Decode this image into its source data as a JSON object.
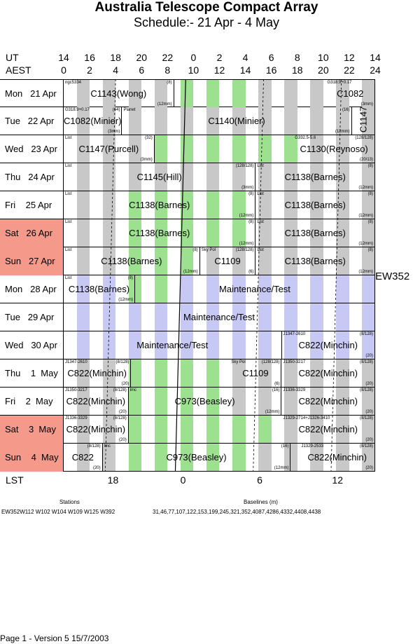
{
  "title": "Australia Telescope Compact Array",
  "subtitle": "Schedule:- 21 Apr - 4  May",
  "axes": {
    "ut_label": "UT",
    "aest_label": "AEST",
    "ut_ticks": [
      "14",
      "16",
      "18",
      "20",
      "22",
      "0",
      "2",
      "4",
      "6",
      "8",
      "10",
      "12",
      "14"
    ],
    "aest_ticks": [
      "0",
      "2",
      "4",
      "6",
      "8",
      "10",
      "12",
      "14",
      "16",
      "18",
      "20",
      "22",
      "24"
    ],
    "lst_label": "LST",
    "lst_ticks": [
      "18",
      "0",
      "6",
      "12"
    ]
  },
  "config_label": "EW352",
  "colors": {
    "weekend": "#f59a8a",
    "grey": "#c8c8c8",
    "green": "#9de08f",
    "lavender": "#c8c8f4"
  },
  "rows": [
    {
      "day": "Mon   21 Apr",
      "weekend": false,
      "blocks": [
        {
          "name": "C1143(Wong)",
          "note": "ngc5334",
          "ratio": "(8)",
          "band": "(12mm)"
        },
        {
          "name": "C1082",
          "note": "G318.9+0.17",
          "ratio": "",
          "band": "(3mm)"
        }
      ]
    },
    {
      "day": "Tue   22 Apr",
      "weekend": false,
      "blocks": [
        {
          "name": "C1082(Minier)",
          "note": "G318.9+0.17",
          "ratio": "(64)",
          "band": "(3mm)"
        },
        {
          "name": "C1140(Minier)",
          "note": "Planet",
          "ratio": "(16)",
          "band": "(12mm)"
        },
        {
          "name": "C1147",
          "note": "",
          "ratio": "",
          "band": ""
        }
      ]
    },
    {
      "day": "Wed   23 Apr",
      "weekend": false,
      "blocks": [
        {
          "name": "C1147(Purcell)",
          "note": "List",
          "ratio": "(32)",
          "band": "(3mm)"
        },
        {
          "name": "C1130(Reynoso)",
          "note": "G332.5-5.6",
          "ratio": "(128/128)",
          "band": "(20/13)"
        }
      ]
    },
    {
      "day": "Thu   24 Apr",
      "weekend": false,
      "blocks": [
        {
          "name": "C1145(Hill)",
          "note": "List",
          "ratio": "(128/128)",
          "band": "(3mm)"
        },
        {
          "name": "C1138(Barnes)",
          "note": "List",
          "ratio": "(8)",
          "band": "(12mm)"
        }
      ]
    },
    {
      "day": "Fri    25 Apr",
      "weekend": false,
      "blocks": [
        {
          "name": "C1138(Barnes)",
          "note": "List",
          "ratio": "(8)",
          "band": "(12mm)"
        },
        {
          "name": "C1138(Barnes)",
          "note": "List",
          "ratio": "(8)",
          "band": "(12mm)"
        }
      ]
    },
    {
      "day": "Sat   26 Apr",
      "weekend": true,
      "blocks": [
        {
          "name": "C1138(Barnes)",
          "note": "List",
          "ratio": "(8)",
          "band": "(12mm)"
        },
        {
          "name": "C1138(Barnes)",
          "note": "List",
          "ratio": "(8)",
          "band": "(12mm)"
        }
      ]
    },
    {
      "day": "Sun   27 Apr",
      "weekend": true,
      "blocks": [
        {
          "name": "C1138(Barnes)",
          "note": "List",
          "ratio": "(8)",
          "band": "(12mm)"
        },
        {
          "name": "C1109",
          "note": "Sky Pol",
          "ratio": "(128/128)",
          "band": "(6)"
        },
        {
          "name": "C1138(Barnes)",
          "note": "List",
          "ratio": "(8)",
          "band": "(12mm)"
        }
      ]
    },
    {
      "day": "Mon   28 Apr",
      "weekend": false,
      "blocks": [
        {
          "name": "C1138(Barnes)",
          "note": "List",
          "ratio": "(8)",
          "band": "(12mm)"
        },
        {
          "name": "Maintenance/Test",
          "note": "",
          "ratio": "",
          "band": ""
        }
      ]
    },
    {
      "day": "Tue   29 Apr",
      "weekend": false,
      "blocks": [
        {
          "name": "Maintenance/Test",
          "note": "",
          "ratio": "",
          "band": ""
        }
      ]
    },
    {
      "day": "Wed   30 Apr",
      "weekend": false,
      "blocks": [
        {
          "name": "Maintenance/Test",
          "note": "",
          "ratio": "",
          "band": ""
        },
        {
          "name": "C822(Minchin)",
          "note": "J1347-2610",
          "ratio": "(8/128)",
          "band": "(20)"
        }
      ]
    },
    {
      "day": "Thu    1  May",
      "weekend": false,
      "blocks": [
        {
          "name": "C822(Minchin)",
          "note": "J1347-2610",
          "ratio": "(8/128)",
          "band": "(20)"
        },
        {
          "name": "C1109",
          "note": "Sky Pol",
          "ratio": "(128/128)",
          "band": "(6)"
        },
        {
          "name": "C822(Minchin)",
          "note": "J1350-3217",
          "ratio": "(8/128)",
          "band": "(20)"
        }
      ]
    },
    {
      "day": "Fri    2  May",
      "weekend": false,
      "blocks": [
        {
          "name": "C822(Minchin)",
          "note": "J1350-3217",
          "ratio": "(8/128)",
          "band": "(20)"
        },
        {
          "name": "C973(Beasley)",
          "note": "lmc",
          "ratio": "(16)",
          "band": "(12mm)"
        },
        {
          "name": "C822(Minchin)",
          "note": "J1336-3329",
          "ratio": "(8/128)",
          "band": "(20)"
        }
      ]
    },
    {
      "day": "Sat    3  May",
      "weekend": true,
      "blocks": [
        {
          "name": "C822(Minchin)",
          "note": "J1336-3329",
          "ratio": "(8/128)",
          "band": "(20)"
        },
        {
          "name": "C822(Minchin)",
          "note": "J1329-2714+J1326-3410",
          "ratio": "(8/128)",
          "band": "(20)"
        }
      ]
    },
    {
      "day": "Sun    4  May",
      "weekend": true,
      "blocks": [
        {
          "name": "C822",
          "note": "",
          "ratio": "(8/128)",
          "band": "(20)"
        },
        {
          "name": "C973(Beasley)",
          "note": "lmc",
          "ratio": "(16)",
          "band": "(12mm)"
        },
        {
          "name": "C822(Minchin)",
          "note": "J1329-2533",
          "ratio": "(8/128)",
          "band": "(20)"
        }
      ]
    }
  ],
  "footer": {
    "stations_label": "Stations",
    "stations": "EW352W112 W102 W104 W109 W125 W392",
    "baselines_label": "Baselines (m)",
    "baselines": "31,46,77,107,122,153,199,245,321,352,4087,4286,4332,4408,4438",
    "page": "Page 1 - Version 5  15/7/2003"
  }
}
